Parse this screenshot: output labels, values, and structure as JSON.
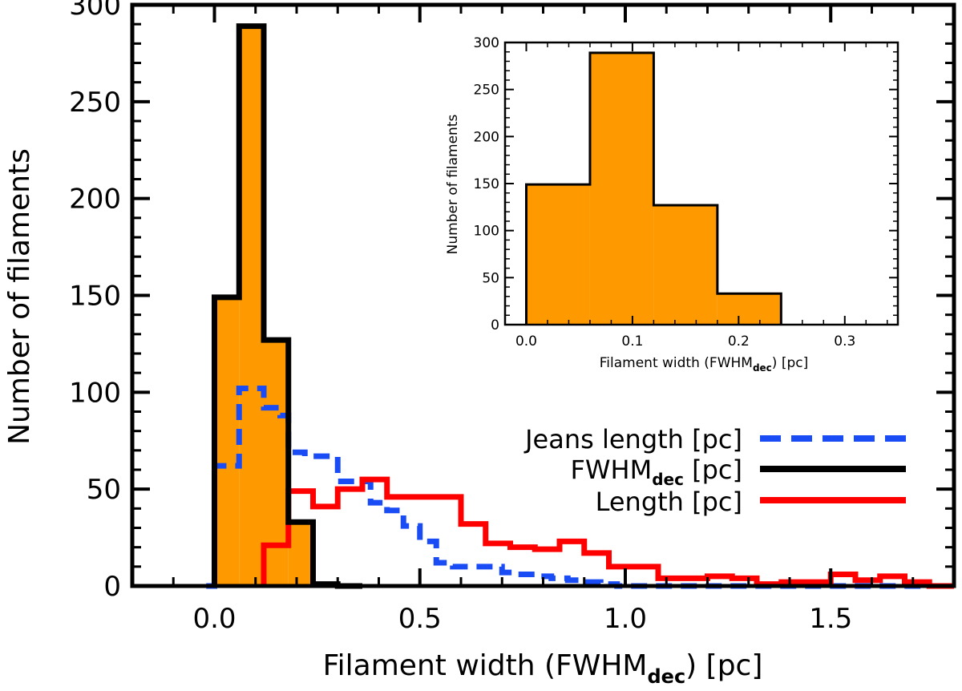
{
  "chart_data": [
    {
      "name": "main",
      "type": "histogram",
      "xlabel": "Filament width (FWHM",
      "xlabel_sub": "dec",
      "xlabel_suffix": ") [pc]",
      "ylabel": "Number of filaments",
      "xlim": [
        -0.2,
        1.8
      ],
      "ylim": [
        0,
        300
      ],
      "xticks": [
        0.0,
        0.5,
        1.0,
        1.5
      ],
      "xtick_labels": [
        "0.0",
        "0.5",
        "1.0",
        "1.5"
      ],
      "yticks": [
        0,
        50,
        100,
        150,
        200,
        250,
        300
      ],
      "ytick_labels": [
        "0",
        "50",
        "100",
        "150",
        "200",
        "250",
        "300"
      ],
      "legend_position": "right",
      "series": [
        {
          "name": "FWHM_dec [pc]",
          "label": "FWHM",
          "label_sub": "dec",
          "label_suffix": " [pc]",
          "color": "#000000",
          "fill": "#ff9900",
          "style": "solid",
          "bin_width": 0.06,
          "edges": [
            0.0,
            0.06,
            0.12,
            0.18,
            0.24,
            0.3,
            0.36
          ],
          "counts": [
            149,
            289,
            127,
            33,
            1,
            0
          ]
        },
        {
          "name": "Jeans length [pc]",
          "label": "Jeans length [pc]",
          "color": "#1a4cf5",
          "style": "dashed",
          "edges": [
            -0.02,
            0.0,
            0.02,
            0.04,
            0.06,
            0.08,
            0.1,
            0.12,
            0.14,
            0.16,
            0.18,
            0.22,
            0.26,
            0.3,
            0.34,
            0.38,
            0.42,
            0.46,
            0.5,
            0.54,
            0.58,
            0.62,
            0.66,
            0.7,
            0.74,
            0.78,
            0.82,
            0.86,
            0.9,
            0.94,
            0.98,
            1.02,
            1.8
          ],
          "counts": [
            0,
            62,
            62,
            62,
            102,
            102,
            102,
            92,
            92,
            88,
            69,
            67,
            67,
            54,
            54,
            43,
            39,
            31,
            23,
            12,
            10,
            10,
            10,
            7,
            6,
            5,
            4,
            3,
            2,
            1,
            0,
            0
          ]
        },
        {
          "name": "Length [pc]",
          "label": "Length [pc]",
          "color": "#ff0000",
          "style": "solid",
          "edges": [
            0.12,
            0.18,
            0.24,
            0.3,
            0.36,
            0.42,
            0.48,
            0.54,
            0.6,
            0.66,
            0.72,
            0.78,
            0.84,
            0.9,
            0.96,
            1.02,
            1.08,
            1.14,
            1.2,
            1.26,
            1.32,
            1.38,
            1.44,
            1.5,
            1.56,
            1.62,
            1.68,
            1.74,
            1.8
          ],
          "counts": [
            21,
            49,
            41,
            50,
            55,
            46,
            46,
            46,
            32,
            22,
            20,
            19,
            23,
            17,
            10,
            10,
            4,
            4,
            5,
            4,
            1,
            2,
            2,
            6,
            3,
            5,
            2,
            0
          ]
        }
      ]
    },
    {
      "name": "inset",
      "type": "histogram",
      "xlabel": "Filament width (FWHM",
      "xlabel_sub": "dec",
      "xlabel_suffix": ") [pc]",
      "ylabel": "Number of filaments",
      "xlim": [
        -0.02,
        0.35
      ],
      "ylim": [
        0,
        300
      ],
      "xticks": [
        0.0,
        0.1,
        0.2,
        0.3
      ],
      "xtick_labels": [
        "0.0",
        "0.1",
        "0.2",
        "0.3"
      ],
      "yticks": [
        0,
        50,
        100,
        150,
        200,
        250,
        300
      ],
      "ytick_labels": [
        "0",
        "50",
        "100",
        "150",
        "200",
        "250",
        "300"
      ],
      "series": [
        {
          "name": "FWHM_dec [pc]",
          "color": "#000000",
          "fill": "#ff9900",
          "edges": [
            0.0,
            0.06,
            0.12,
            0.18,
            0.24
          ],
          "counts": [
            149,
            289,
            127,
            33
          ]
        }
      ]
    }
  ]
}
